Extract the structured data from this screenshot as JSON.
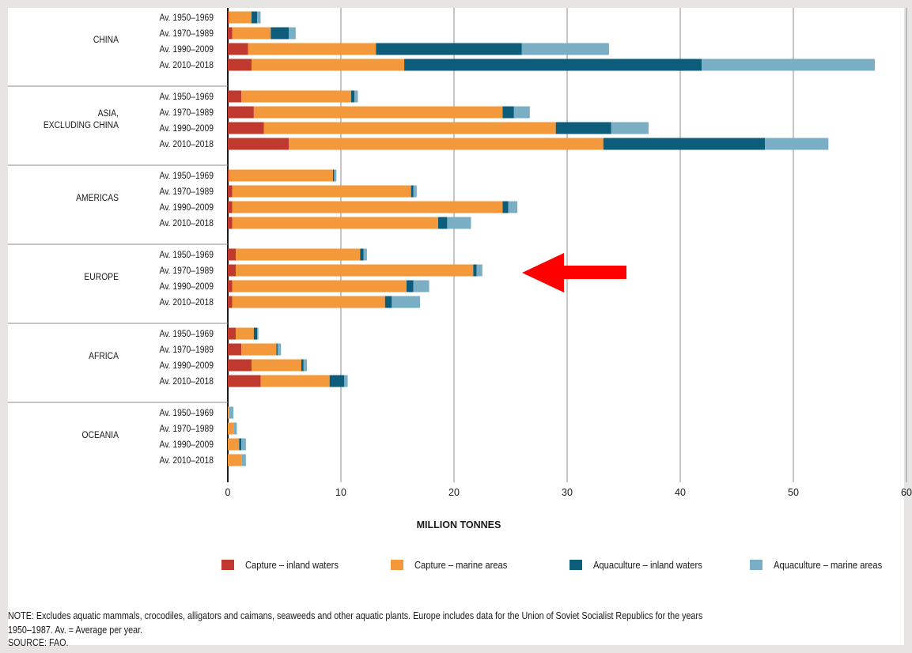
{
  "chart_data": {
    "type": "bar",
    "orientation": "horizontal",
    "stacked": true,
    "xlabel": "MILLION TONNES",
    "xlim": [
      0,
      60
    ],
    "x_ticks": [
      "0",
      "10",
      "20",
      "30",
      "40",
      "50",
      "60"
    ],
    "grid": true,
    "legend_position": "bottom",
    "groups": [
      {
        "name": "CHINA",
        "categories": [
          "Av. 1950–1969",
          "Av. 1970–1989",
          "Av. 1990–2009",
          "Av. 2010–2018"
        ]
      },
      {
        "name": "ASIA,\nEXCLUDING CHINA",
        "categories": [
          "Av. 1950–1969",
          "Av. 1970–1989",
          "Av. 1990–2009",
          "Av. 2010–2018"
        ]
      },
      {
        "name": "AMERICAS",
        "categories": [
          "Av. 1950–1969",
          "Av. 1970–1989",
          "Av. 1990–2009",
          "Av. 2010–2018"
        ]
      },
      {
        "name": "EUROPE",
        "categories": [
          "Av. 1950–1969",
          "Av. 1970–1989",
          "Av. 1990–2009",
          "Av. 2010–2018"
        ]
      },
      {
        "name": "AFRICA",
        "categories": [
          "Av. 1950–1969",
          "Av. 1970–1989",
          "Av. 1990–2009",
          "Av. 2010–2018"
        ]
      },
      {
        "name": "OCEANIA",
        "categories": [
          "Av. 1950–1969",
          "Av. 1970–1989",
          "Av. 1990–2009",
          "Av. 2010–2018"
        ]
      }
    ],
    "series": [
      {
        "name": "Capture – inland waters",
        "color": "#c0392f",
        "values": [
          0.1,
          0.4,
          1.8,
          2.1,
          1.2,
          2.3,
          3.2,
          5.4,
          0.1,
          0.4,
          0.4,
          0.4,
          0.7,
          0.7,
          0.4,
          0.4,
          0.7,
          1.2,
          2.1,
          2.9,
          0.0,
          0.0,
          0.0,
          0.0
        ]
      },
      {
        "name": "Capture – marine areas",
        "color": "#f3993c",
        "values": [
          2.0,
          3.4,
          11.3,
          13.5,
          9.7,
          22.0,
          25.8,
          27.8,
          9.2,
          15.8,
          23.9,
          18.2,
          11.0,
          21.0,
          15.4,
          13.5,
          1.6,
          3.1,
          4.4,
          6.1,
          0.1,
          0.5,
          1.0,
          1.2
        ]
      },
      {
        "name": "Aquaculture – inland waters",
        "color": "#0d5c79",
        "values": [
          0.5,
          1.6,
          12.9,
          26.3,
          0.3,
          1.0,
          4.9,
          14.3,
          0.1,
          0.2,
          0.5,
          0.8,
          0.3,
          0.3,
          0.6,
          0.6,
          0.3,
          0.1,
          0.2,
          1.3,
          0.0,
          0.0,
          0.2,
          0.0
        ]
      },
      {
        "name": "Aquaculture – marine areas",
        "color": "#7aaec4",
        "values": [
          0.3,
          0.6,
          7.7,
          15.3,
          0.3,
          1.4,
          3.3,
          5.6,
          0.2,
          0.3,
          0.8,
          2.1,
          0.3,
          0.5,
          1.4,
          2.5,
          0.1,
          0.3,
          0.3,
          0.3,
          0.4,
          0.3,
          0.4,
          0.4
        ]
      }
    ]
  },
  "note": "NOTE: Excludes aquatic mammals, crocodiles, alligators and caimans, seaweeds and other aquatic plants. Europe includes data for the Union of Soviet Socialist Republics for the years\n1950–1987. Av. = Average per year.",
  "source": "SOURCE: FAO.",
  "annotation_arrow_color": "#ff0000"
}
